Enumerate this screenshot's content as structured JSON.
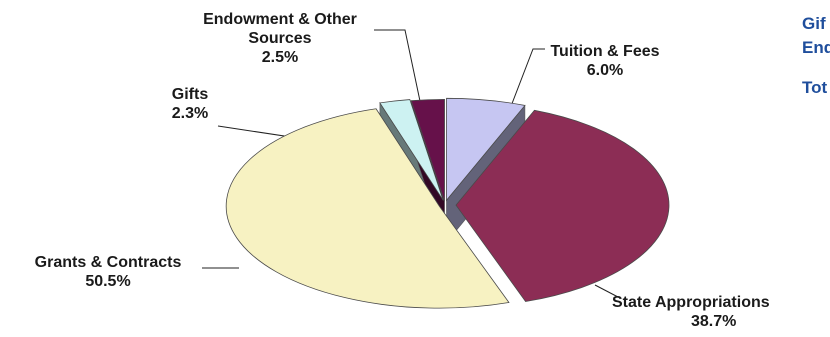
{
  "chart_data": {
    "type": "pie",
    "style": "3d-exploded",
    "slices": [
      {
        "name": "Tuition & Fees",
        "label_lines": [
          "Tuition & Fees"
        ],
        "value": 6.0,
        "value_label": "6.0%",
        "color": "#c6c6f2"
      },
      {
        "name": "State Appropriations",
        "label_lines": [
          "State Appropriations"
        ],
        "value": 38.7,
        "value_label": "38.7%",
        "color": "#8c2d55"
      },
      {
        "name": "Grants & Contracts",
        "label_lines": [
          "Grants & Contracts"
        ],
        "value": 50.5,
        "value_label": "50.5%",
        "color": "#f7f2c2"
      },
      {
        "name": "Gifts",
        "label_lines": [
          "Gifts"
        ],
        "value": 2.3,
        "value_label": "2.3%",
        "color": "#cdf2f2"
      },
      {
        "name": "Endowment & Other Sources",
        "label_lines": [
          "Endowment & Other",
          "Sources"
        ],
        "value": 2.5,
        "value_label": "2.5%",
        "color": "#66114a"
      }
    ],
    "legend": "none",
    "title": ""
  },
  "side_text": {
    "line1": "Gif",
    "line2": "End",
    "line3": "Tot",
    "color": "#1f4e9c"
  }
}
